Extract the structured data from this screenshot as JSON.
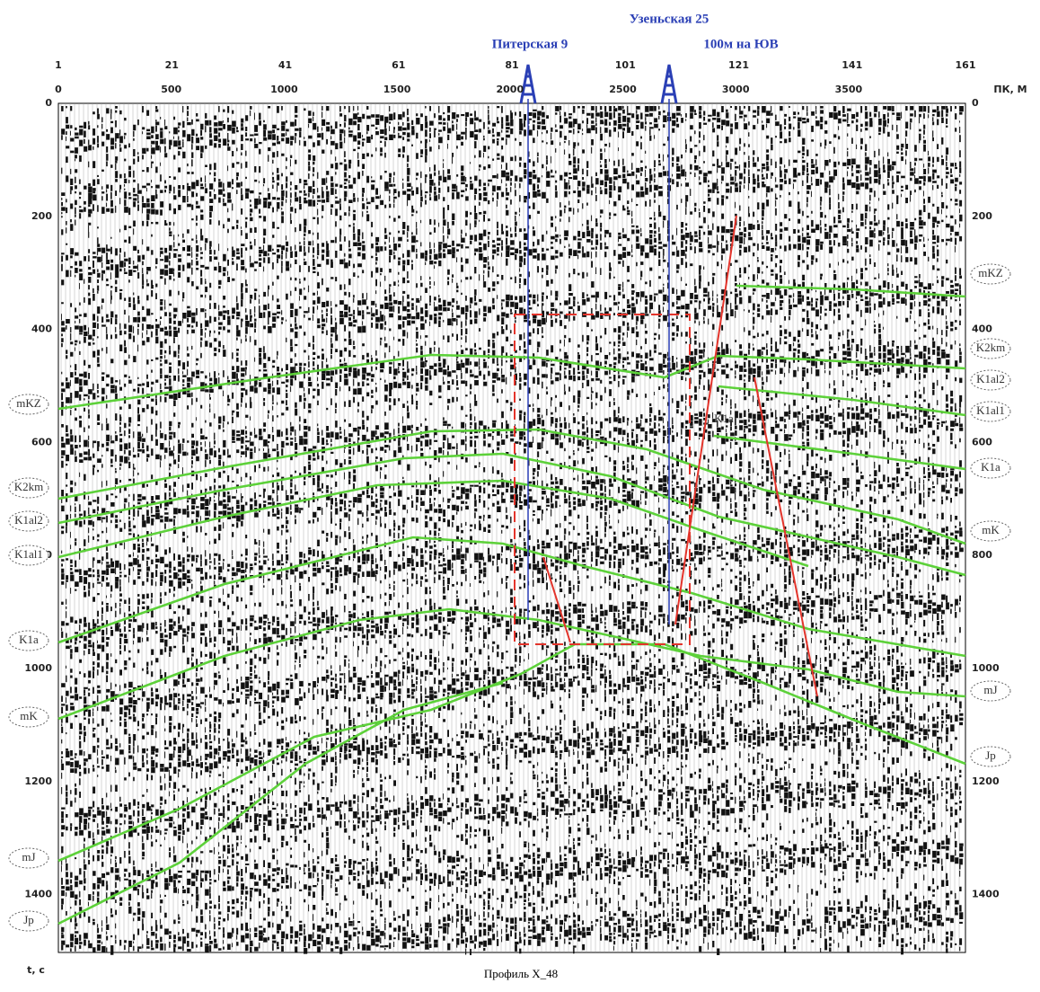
{
  "wells": [
    {
      "label": "Питерская 9"
    },
    {
      "label": "Узеньская 25",
      "note": "100м на ЮВ"
    }
  ],
  "axes": {
    "pickets": [
      1,
      21,
      41,
      61,
      81,
      101,
      121,
      141,
      161
    ],
    "distances": [
      0,
      500,
      1000,
      1500,
      2000,
      2500,
      3000,
      3500
    ],
    "distance_unit": "ПК, М",
    "times": [
      0,
      200,
      400,
      600,
      800,
      1000,
      1200,
      1400
    ],
    "time_unit": "t, c"
  },
  "horizons": {
    "left": [
      "mKZ",
      "K2km",
      "K1al2",
      "K1al1",
      "K1a",
      "mK",
      "mJ",
      "Jp"
    ],
    "right": [
      "mKZ",
      "K2km",
      "K1al2",
      "K1al1",
      "K1a",
      "mK",
      "mJ",
      "Jp"
    ],
    "inner": [
      "K1a"
    ]
  },
  "caption": "Профиль X_48"
}
